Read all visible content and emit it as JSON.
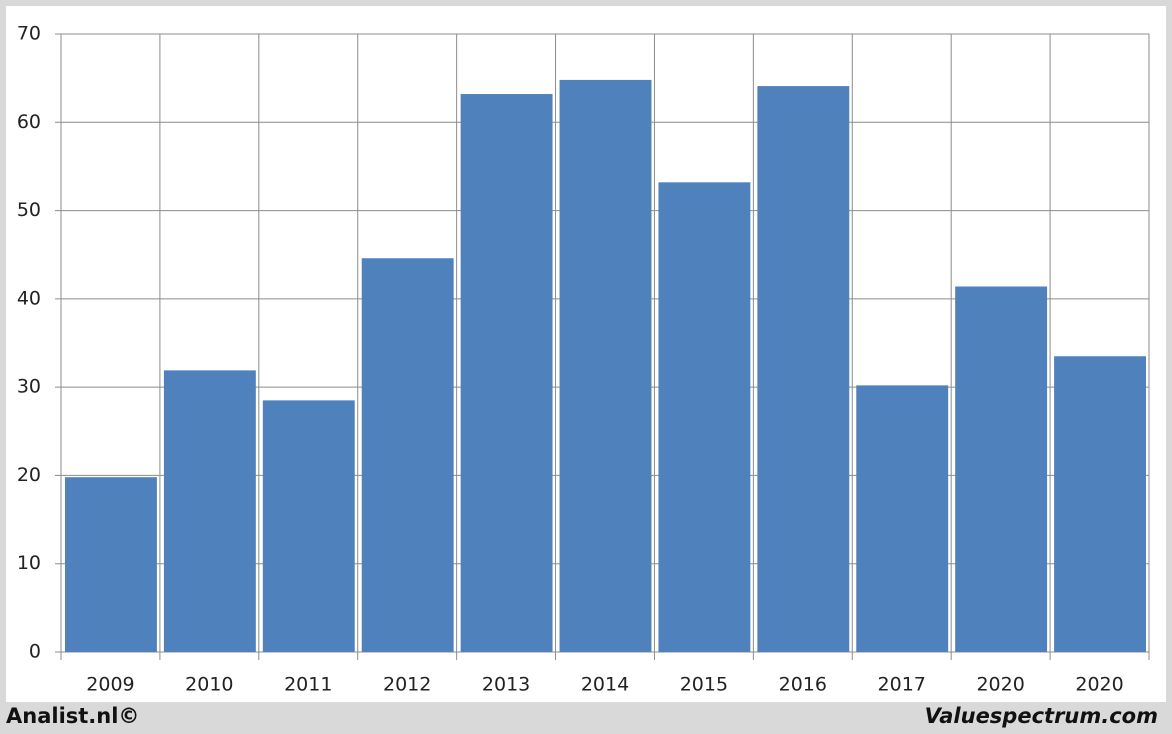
{
  "chart_data": {
    "type": "bar",
    "categories": [
      "2009",
      "2010",
      "2011",
      "2012",
      "2013",
      "2014",
      "2015",
      "2016",
      "2017",
      "2020",
      "2020"
    ],
    "values": [
      19.8,
      31.9,
      28.5,
      44.6,
      63.2,
      64.8,
      53.2,
      64.1,
      30.2,
      41.4,
      33.5
    ],
    "color": "#4f81bd",
    "ylim": [
      0,
      70
    ],
    "yticks": [
      0,
      10,
      20,
      30,
      40,
      50,
      60,
      70
    ],
    "grid": true,
    "credits": [
      "Analist.nl©",
      "Valuespectrum.com"
    ]
  }
}
